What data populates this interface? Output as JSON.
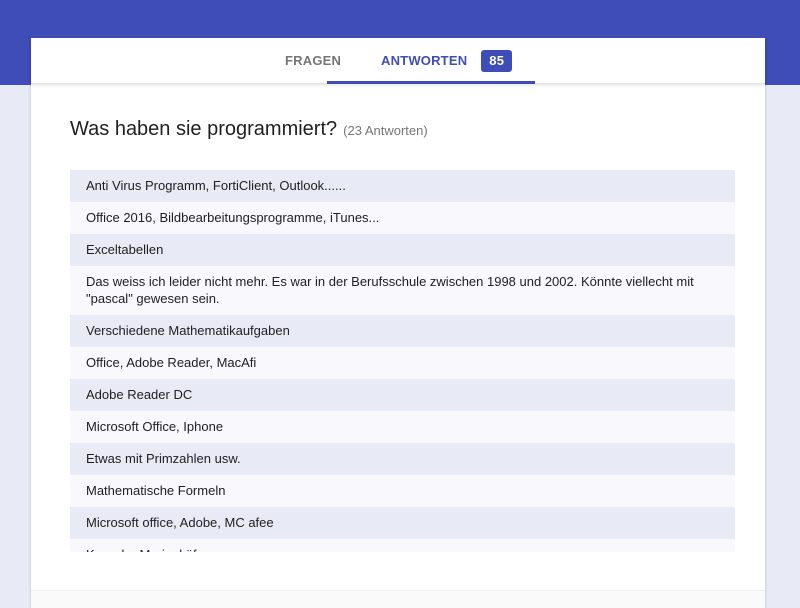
{
  "tabs": {
    "questions": "FRAGEN",
    "answers": "ANTWORTEN",
    "answers_count": "85"
  },
  "question": {
    "title": "Was haben sie programmiert?",
    "count": "(23 Antworten)"
  },
  "responses": [
    "Anti Virus Programm, FortiClient, Outlook......",
    "Office 2016, Bildbearbeitungsprogramme, iTunes...",
    "Exceltabellen",
    "Das weiss ich leider nicht mehr. Es war in der Berufsschule zwischen 1998 und 2002. Könnte viellecht mit \"pascal\" gewesen sein.",
    "Verschiedene Mathematikaufgaben",
    "Office, Adobe Reader, MacAfi",
    "Adobe Reader DC",
    "Microsoft Office, Iphone",
    "Etwas mit Primzahlen usw.",
    "Mathematische Formeln",
    "Microsoft office, Adobe, MC afee",
    "Kara der Marienkäfer"
  ]
}
